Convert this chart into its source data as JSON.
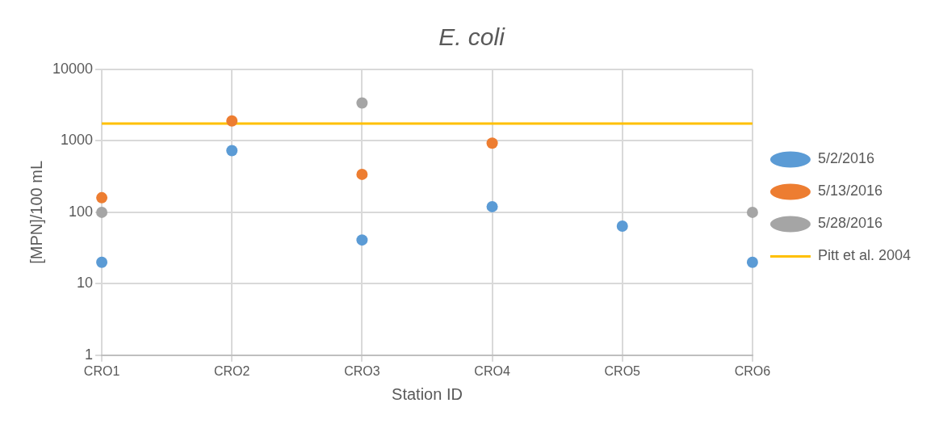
{
  "chart_data": {
    "type": "scatter",
    "title": "E. coli",
    "xlabel": "Station ID",
    "ylabel": "[MPN]/100 mL",
    "categories": [
      "CRO1",
      "CRO2",
      "CRO3",
      "CRO4",
      "CRO5",
      "CRO6"
    ],
    "series": [
      {
        "name": "5/2/2016",
        "color": "#5b9bd5",
        "values": [
          20,
          730,
          41,
          120,
          64,
          20
        ]
      },
      {
        "name": "5/13/2016",
        "color": "#ed7d31",
        "values": [
          160,
          1900,
          340,
          930,
          null,
          null
        ]
      },
      {
        "name": "5/28/2016",
        "color": "#a5a5a5",
        "values": [
          100,
          null,
          3400,
          null,
          null,
          100
        ]
      },
      {
        "name": "Pitt et al. 2004",
        "color": "#ffc000",
        "type": "line",
        "marker": "none",
        "values": [
          1750,
          1750,
          1750,
          1750,
          1750,
          1750
        ]
      }
    ],
    "log": "y",
    "ylim": [
      1,
      10000
    ],
    "yticks": [
      1,
      10,
      100,
      1000,
      10000
    ],
    "grid": true,
    "legend": "right",
    "marker": "circle"
  }
}
